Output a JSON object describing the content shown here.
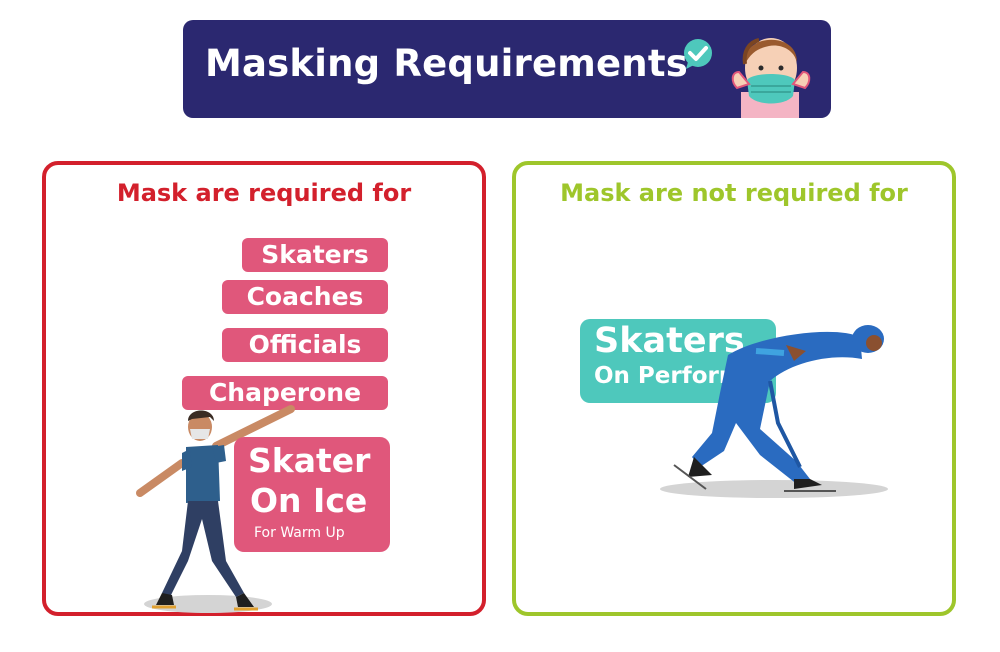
{
  "header": {
    "title": "Masking Requirements"
  },
  "required_panel": {
    "heading": "Mask are required for",
    "items": [
      "Skaters",
      "Coaches",
      "Officials",
      "Chaperone"
    ],
    "card": {
      "line1": "Skater",
      "line2": "On Ice",
      "note": "For Warm Up"
    }
  },
  "not_required_panel": {
    "heading": "Mask are not required for",
    "card": {
      "line1": "Skaters",
      "line2": "On Perform"
    }
  },
  "colors": {
    "banner": "#2b2870",
    "required": "#d3202c",
    "not_required": "#9ec62b",
    "pink": "#e0577b",
    "teal": "#4ec8bc"
  },
  "icons": [
    "check-icon",
    "masked-person-icon",
    "masked-skater-illustration",
    "speed-skater-illustration"
  ]
}
